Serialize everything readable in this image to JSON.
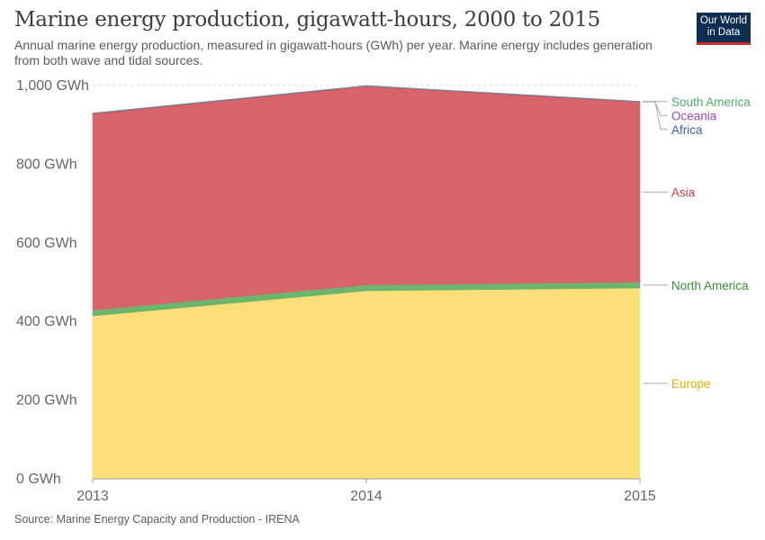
{
  "header": {
    "title": "Marine energy production, gigawatt-hours, 2000 to 2015",
    "subtitle": "Annual marine energy production, measured in gigawatt-hours (GWh) per year. Marine energy includes generation from both wave and tidal sources."
  },
  "logo": {
    "line1": "Our World",
    "line2": "in Data",
    "background": "#0f2c53",
    "accent": "#c92f2f"
  },
  "footer": {
    "source": "Source: Marine Energy Capacity and Production - IRENA"
  },
  "chart_data": {
    "type": "area",
    "stacked": true,
    "x": [
      2013,
      2014,
      2015
    ],
    "x_tick_labels": [
      "2013",
      "2014",
      "2015"
    ],
    "ylim": [
      0,
      1000
    ],
    "y_ticks": [
      0,
      200,
      400,
      600,
      800,
      1000
    ],
    "y_tick_labels": [
      "0 GWh",
      "200 GWh",
      "400 GWh",
      "600 GWh",
      "800 GWh",
      "1,000 GWh"
    ],
    "grid": "horizontal dashed",
    "legend_placement": "right, inline labels",
    "series": [
      {
        "name": "Europe",
        "values": [
          414,
          478,
          485
        ],
        "color": "#fddf7a",
        "label_color": "#e2b100"
      },
      {
        "name": "North America",
        "values": [
          15,
          15,
          15
        ],
        "color": "#6db56d",
        "label_color": "#3a8d3a"
      },
      {
        "name": "Asia",
        "values": [
          499,
          505,
          458
        ],
        "color": "#d6646a",
        "label_color": "#c73c45"
      },
      {
        "name": "Africa",
        "values": [
          0.5,
          0.5,
          0.5
        ],
        "color": "#3b5f9e",
        "label_color": "#3b5f9e"
      },
      {
        "name": "Oceania",
        "values": [
          0.5,
          0.5,
          0.5
        ],
        "color": "#a24aa8",
        "label_color": "#a24aa8"
      },
      {
        "name": "South America",
        "values": [
          0.5,
          0.5,
          0.5
        ],
        "color": "#6ab784",
        "label_color": "#4dab6c"
      }
    ]
  }
}
